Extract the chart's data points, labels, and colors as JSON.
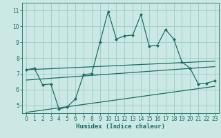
{
  "xlabel": "Humidex (Indice chaleur)",
  "bg_color": "#cce8e5",
  "grid_color": "#99ccca",
  "line_color": "#1a6e64",
  "xlim": [
    -0.5,
    23.5
  ],
  "ylim": [
    4.5,
    11.5
  ],
  "xticks": [
    0,
    1,
    2,
    3,
    4,
    5,
    6,
    7,
    8,
    9,
    10,
    11,
    12,
    13,
    14,
    15,
    16,
    17,
    18,
    19,
    20,
    21,
    22,
    23
  ],
  "yticks": [
    5,
    6,
    7,
    8,
    9,
    10,
    11
  ],
  "main_x": [
    0,
    1,
    2,
    3,
    4,
    5,
    6,
    7,
    8,
    9,
    10,
    11,
    12,
    13,
    14,
    15,
    16,
    17,
    18,
    19,
    20,
    21,
    22,
    23
  ],
  "main_y": [
    7.25,
    7.35,
    6.3,
    6.35,
    4.75,
    4.9,
    5.4,
    6.95,
    7.0,
    9.0,
    10.95,
    9.2,
    9.4,
    9.45,
    10.75,
    8.75,
    8.8,
    9.8,
    9.2,
    7.75,
    7.35,
    6.35,
    6.4,
    6.55
  ],
  "line1_x": [
    0,
    23
  ],
  "line1_y": [
    7.25,
    7.8
  ],
  "line2_x": [
    0,
    23
  ],
  "line2_y": [
    6.6,
    7.45
  ],
  "line3_x": [
    0,
    23
  ],
  "line3_y": [
    4.55,
    6.2
  ]
}
